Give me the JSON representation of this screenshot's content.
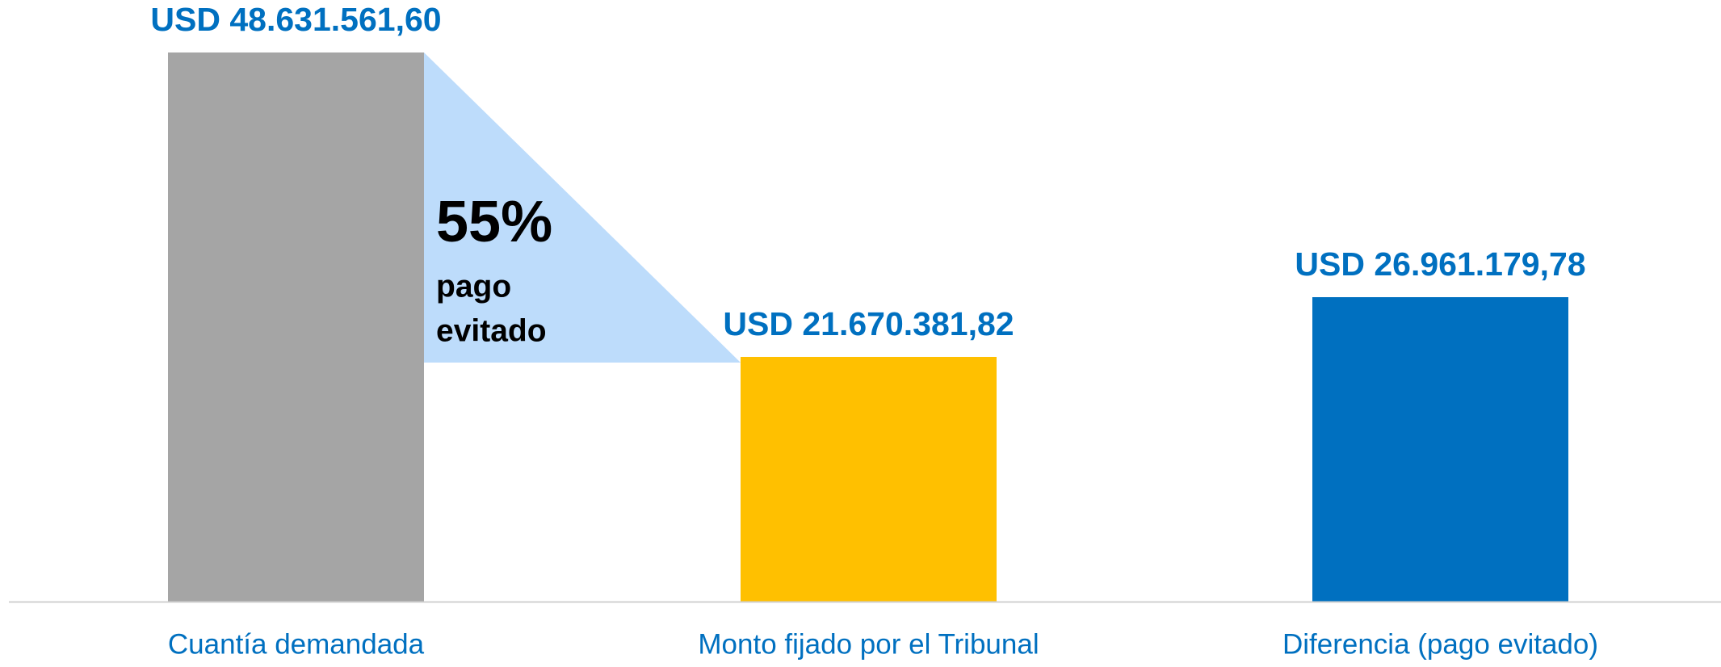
{
  "chart_data": {
    "type": "bar",
    "categories": [
      "Cuantía demandada",
      "Monto fijado por el Tribunal",
      "Diferencia (pago evitado)"
    ],
    "values": [
      48631561.6,
      21670381.82,
      26961179.78
    ],
    "value_labels": [
      "USD 48.631.561,60",
      "USD 21.670.381,82",
      "USD 26.961.179,78"
    ],
    "colors": [
      "#a5a5a5",
      "#ffc000",
      "#0070c0"
    ],
    "annotation": {
      "value": 55,
      "label": "55%",
      "lines": [
        "pago",
        "evitado"
      ],
      "color": "#bddcfb"
    }
  }
}
